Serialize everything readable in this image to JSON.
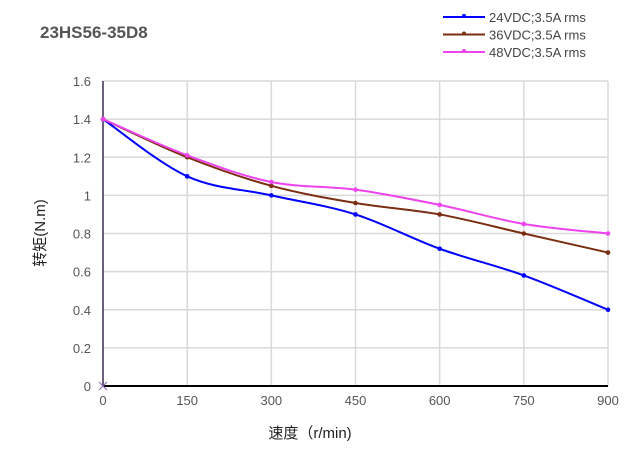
{
  "chart_data": {
    "type": "line",
    "title": "23HS56-35D8",
    "xlabel": "速度（r/min)",
    "ylabel": "转矩(N.m)",
    "x": [
      0,
      150,
      300,
      450,
      600,
      750,
      900
    ],
    "xlim": [
      0,
      900
    ],
    "ylim": [
      0,
      1.6
    ],
    "xticks": [
      "0",
      "150",
      "300",
      "450",
      "600",
      "750",
      "900"
    ],
    "yticks": [
      "0",
      "0.2",
      "0.4",
      "0.6",
      "0.8",
      "1",
      "1.2",
      "1.4",
      "1.6"
    ],
    "grid": true,
    "smooth": true,
    "legend": "top-right",
    "series": [
      {
        "name": "24VDC;3.5A rms",
        "color": "#0000ff",
        "values": [
          1.4,
          1.1,
          1.0,
          0.9,
          0.72,
          0.58,
          0.4
        ]
      },
      {
        "name": "36VDC;3.5A rms",
        "color": "#7b2e10",
        "values": [
          1.4,
          1.2,
          1.05,
          0.96,
          0.9,
          0.8,
          0.7
        ]
      },
      {
        "name": "48VDC;3.5A rms",
        "color": "#ee44ee",
        "values": [
          1.4,
          1.21,
          1.07,
          1.03,
          0.95,
          0.85,
          0.8
        ]
      }
    ]
  }
}
